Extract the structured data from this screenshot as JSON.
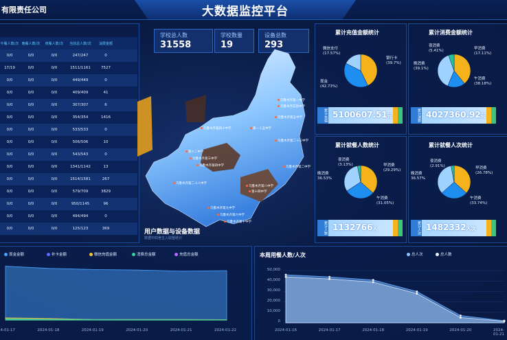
{
  "header": {
    "company": "有限责任公司",
    "title": "大数据监控平台"
  },
  "table": {
    "headers": [
      "午餐人数/次",
      "晚餐人数/次",
      "夜餐人数/次",
      "当前总人数/次",
      "消费金额"
    ],
    "rows": [
      [
        "0/0",
        "0/0",
        "0/0",
        "247/247",
        "0"
      ],
      [
        "17/19",
        "0/0",
        "0/0",
        "1511/1161",
        "7527"
      ],
      [
        "0/0",
        "0/0",
        "0/0",
        "449/449",
        "0"
      ],
      [
        "0/0",
        "0/0",
        "0/0",
        "409/409",
        "41"
      ],
      [
        "0/0",
        "0/0",
        "0/0",
        "307/307",
        "6"
      ],
      [
        "0/0",
        "0/0",
        "0/0",
        "354/354",
        "1416"
      ],
      [
        "0/0",
        "0/0",
        "0/0",
        "533/533",
        "0"
      ],
      [
        "0/0",
        "0/0",
        "0/0",
        "506/506",
        "10"
      ],
      [
        "0/0",
        "0/0",
        "0/0",
        "543/543",
        "0"
      ],
      [
        "0/0",
        "0/0",
        "0/0",
        "1341/1142",
        "13"
      ],
      [
        "0/0",
        "0/0",
        "0/0",
        "1514/1581",
        "267"
      ],
      [
        "0/0",
        "0/0",
        "0/0",
        "579/709",
        "3829"
      ],
      [
        "0/0",
        "0/0",
        "0/0",
        "950/1145",
        "96"
      ],
      [
        "0/0",
        "0/0",
        "0/0",
        "494/494",
        "0"
      ],
      [
        "0/0",
        "0/0",
        "0/0",
        "125/123",
        "369"
      ]
    ]
  },
  "stats": [
    {
      "label": "学校总人数",
      "value": "31558"
    },
    {
      "label": "学校数量",
      "value": "19"
    },
    {
      "label": "设备总数",
      "value": "293"
    }
  ],
  "map": {
    "caption": "用户数据与设备数据",
    "subcaption": "数据中四舍五入取整统计",
    "cities": [
      "乌鲁木齐第一中学",
      "乌鲁木齐实验中学",
      "乌鲁木齐第五中学",
      "第一十五中学",
      "乌鲁木齐第四十中学",
      "乌鲁木齐第二十三中学",
      "第十二中学",
      "乌鲁木齐第三中学",
      "乌鲁木齐第四中学",
      "乌鲁木齐第二中学",
      "乌鲁木齐第二十八中学",
      "乌鲁木齐第八中学",
      "第十四中学",
      "乌鲁木齐第九中学",
      "乌鲁木齐第六中学",
      "乌鲁木齐第十中学"
    ]
  },
  "pies": [
    {
      "title": "累计充值金额统计",
      "labels": [
        {
          "name": "现金",
          "pct": "(42.73%)"
        },
        {
          "name": "银行卡",
          "pct": "(39.7%)"
        },
        {
          "name": "微信支付",
          "pct": "(17.57%)"
        }
      ],
      "values": [
        42.73,
        39.7,
        17.57
      ],
      "amount": "5100607.51",
      "unit": "元",
      "tag": "累计充值"
    },
    {
      "title": "累计消费金额统计",
      "labels": [
        {
          "name": "晚消费",
          "pct": "(39.1%)"
        },
        {
          "name": "早消费",
          "pct": "(17.11%)"
        },
        {
          "name": "午消费",
          "pct": "(38.18%)"
        },
        {
          "name": "夜消费",
          "pct": "(5.41%)"
        }
      ],
      "values": [
        39.1,
        17.11,
        38.18,
        5.41
      ],
      "amount": "4027360.92",
      "unit": "元",
      "tag": "累计消费"
    },
    {
      "title": "累计就餐人数统计",
      "labels": [
        {
          "name": "晚消费",
          "pct": "36.53%"
        },
        {
          "name": "早消费",
          "pct": "(29.29%)"
        },
        {
          "name": "午消费",
          "pct": "(31.05%)"
        },
        {
          "name": "夜消费",
          "pct": "(3.13%)"
        }
      ],
      "values": [
        36.53,
        29.29,
        31.05,
        3.13
      ],
      "amount": "1132766",
      "unit": "人",
      "tag": "累计人数"
    },
    {
      "title": "累计就餐人次统计",
      "labels": [
        {
          "name": "晚消费",
          "pct": "36.57%"
        },
        {
          "name": "早消费",
          "pct": "(26.78%)"
        },
        {
          "name": "午消费",
          "pct": "(33.74%)"
        },
        {
          "name": "夜消费",
          "pct": "(2.91%)"
        }
      ],
      "values": [
        36.57,
        26.78,
        33.74,
        2.91
      ],
      "amount": "1482332",
      "unit": "人次",
      "tag": "累计人次"
    }
  ],
  "colors": {
    "pie": [
      "#f5b21a",
      "#1e8ef0",
      "#9fd2ff",
      "#25c39a"
    ]
  },
  "chart_data": [
    {
      "type": "area",
      "legend": [
        "现金金额",
        "补卡金额",
        "微信充值金额",
        "消费总金额",
        "充值总金额"
      ],
      "x": [
        "2024-01-17",
        "2024-01-18",
        "2024-01-19",
        "2024-01-20",
        "2024-01-21",
        "2024-01-22"
      ],
      "series": [
        {
          "name": "现金金额",
          "values": [
            490000,
            470000,
            460000,
            455000,
            445000,
            450000
          ]
        },
        {
          "name": "微信充值金额",
          "values": [
            20000,
            15000,
            5000,
            5000,
            5000,
            4000
          ]
        },
        {
          "name": "消费总金额",
          "values": [
            12000,
            8000,
            4000,
            3000,
            3000,
            2000
          ]
        }
      ]
    },
    {
      "type": "area",
      "title": "本周用餐人数/人次",
      "legend": [
        "总人次",
        "总人数"
      ],
      "x": [
        "2024-01-16",
        "2024-01-17",
        "2024-01-18",
        "2024-01-19",
        "2024-01-20",
        "2024-01-21"
      ],
      "yticks": [
        "50,000",
        "40,000",
        "30,000",
        "20,000",
        "10,000",
        "0"
      ],
      "ylim": [
        0,
        50000
      ],
      "series": [
        {
          "name": "总人次",
          "values": [
            46000,
            44000,
            41000,
            30000,
            7000,
            2000
          ]
        },
        {
          "name": "总人数",
          "values": [
            44000,
            42000,
            39000,
            28000,
            5000,
            1500
          ]
        }
      ]
    }
  ]
}
